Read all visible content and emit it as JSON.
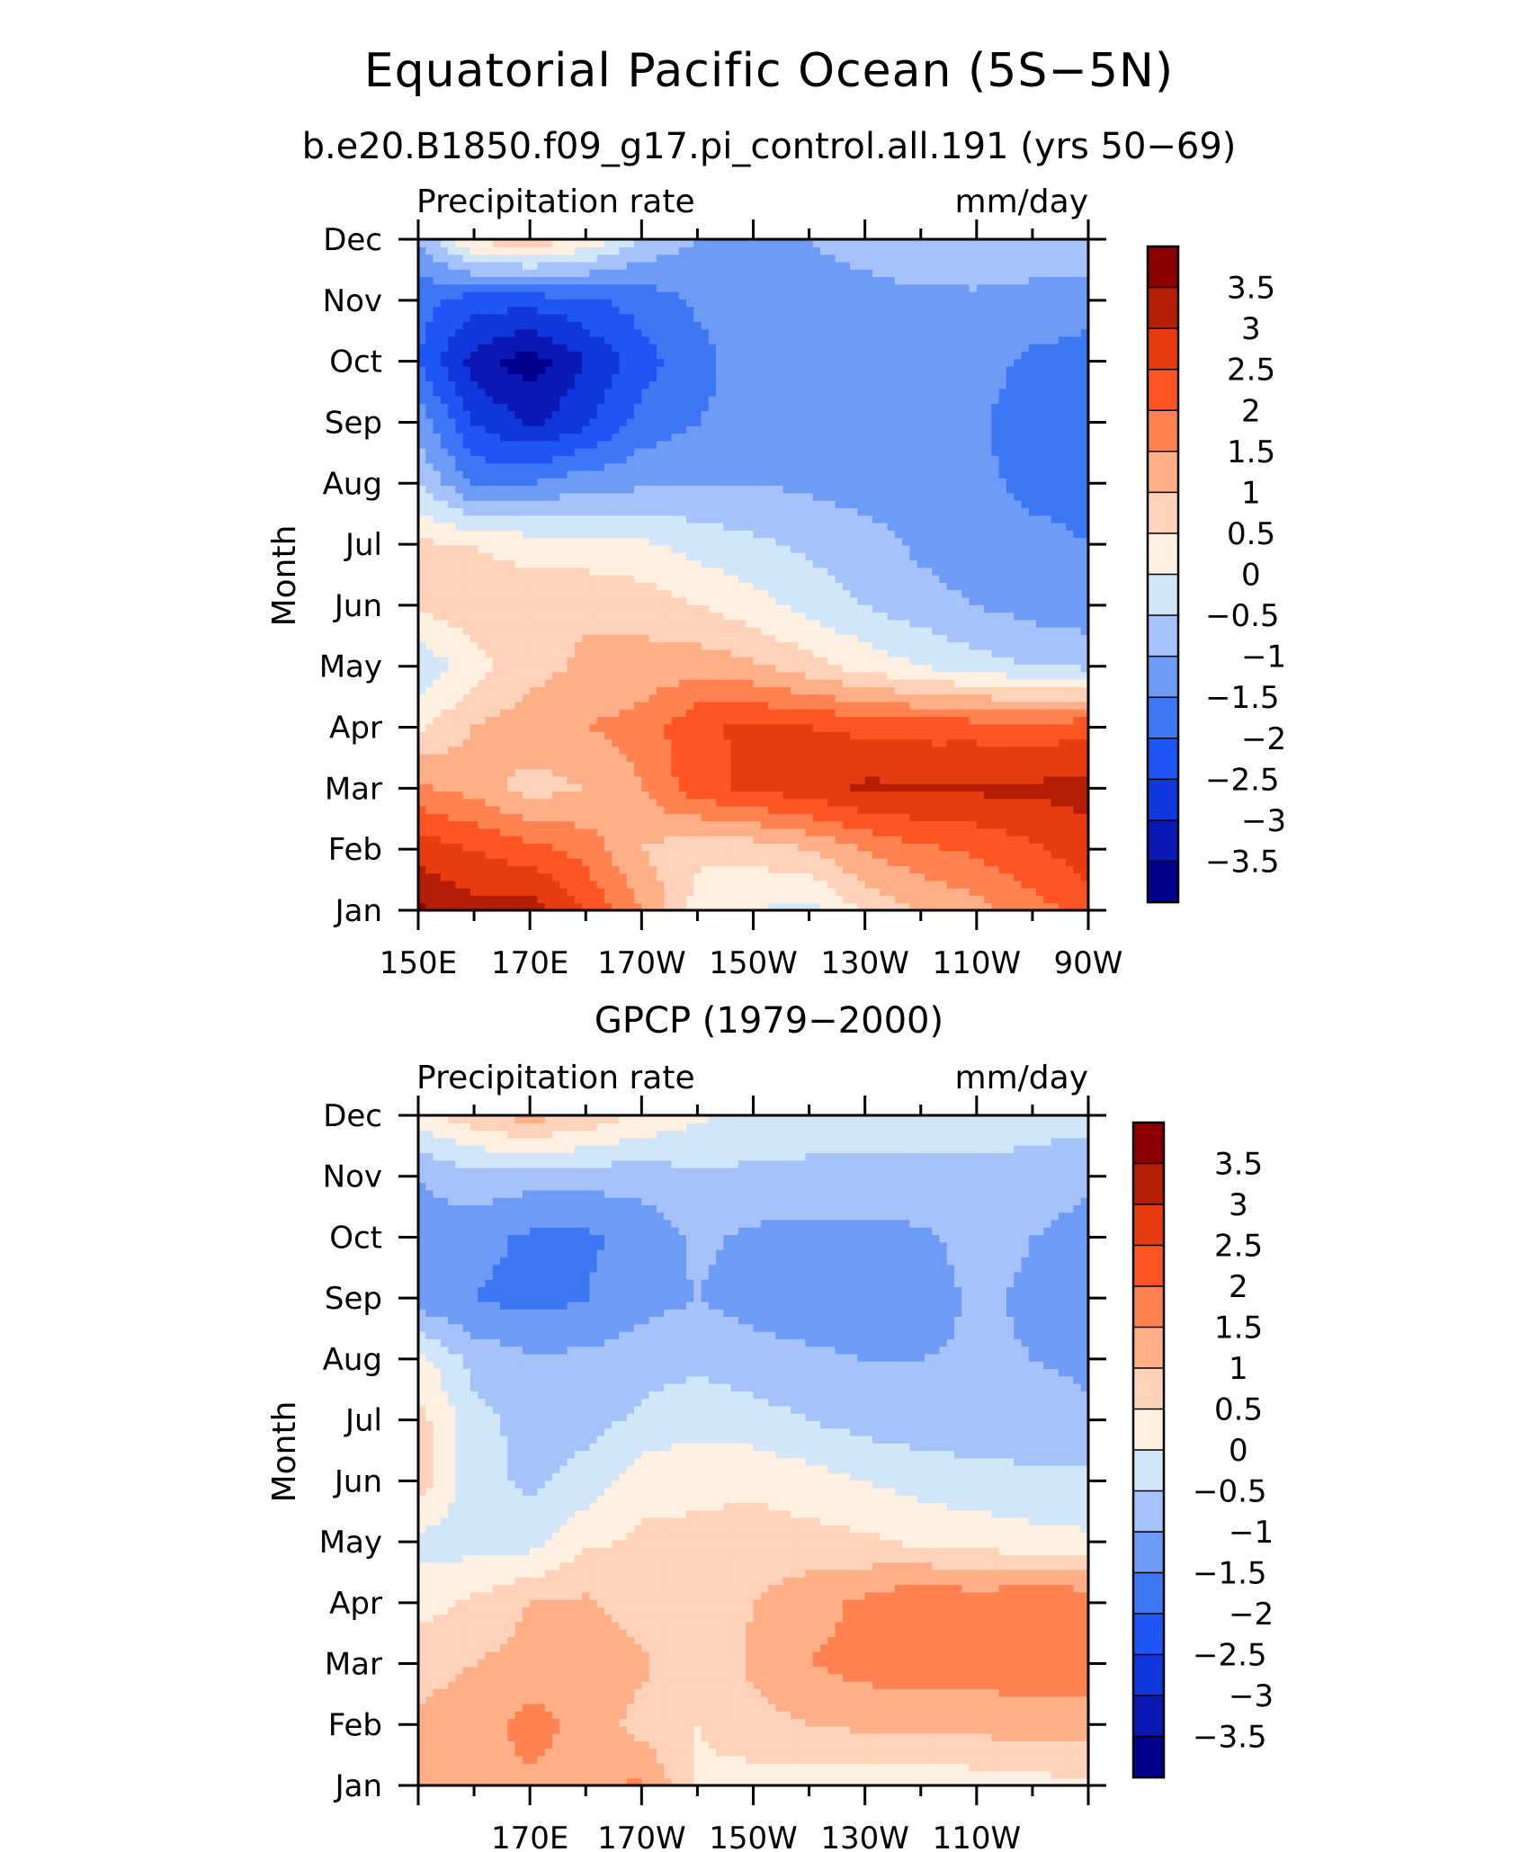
{
  "figure": {
    "title": "Equatorial Pacific Ocean (5S−5N)"
  },
  "chart_data": [
    {
      "type": "heatmap",
      "subtitle": "b.e20.B1850.f09_g17.pi_control.all.191 (yrs 50−69)",
      "left_label": "Precipitation rate",
      "right_label": "mm/day",
      "ylabel": "Month",
      "xlabel": "",
      "x_ticks": [
        "150E",
        "170E",
        "170W",
        "150W",
        "130W",
        "110W",
        "90W"
      ],
      "y_ticks": [
        "Jan",
        "Feb",
        "Mar",
        "Apr",
        "May",
        "Jun",
        "Jul",
        "Aug",
        "Sep",
        "Oct",
        "Nov",
        "Dec"
      ],
      "xlim": [
        150,
        270
      ],
      "colorbar_labels": [
        "3.5",
        "3",
        "2.5",
        "2",
        "1.5",
        "1",
        "0.5",
        "0",
        "−0.5",
        "−1",
        "−1.5",
        "−2",
        "−2.5",
        "−3",
        "−3.5"
      ],
      "levels": [
        -3.5,
        -3,
        -2.5,
        -2,
        -1.5,
        -1,
        -0.5,
        0,
        0.5,
        1,
        1.5,
        2,
        2.5,
        3,
        3.5
      ],
      "colors": [
        "#00008c",
        "#0a19b4",
        "#0f37dc",
        "#1e55f5",
        "#3c78f5",
        "#6e9bf5",
        "#a5c3fa",
        "#d2e6fa",
        "#fff0e1",
        "#ffd2b9",
        "#ffaf87",
        "#ff8250",
        "#ff5523",
        "#e63c0f",
        "#b41e05",
        "#8c0000"
      ],
      "grid": {
        "x_lon": [
          150,
          160,
          170,
          180,
          190,
          200,
          210,
          220,
          230,
          240,
          250,
          260,
          270
        ],
        "months": [
          "Jan",
          "Feb",
          "Mar",
          "Apr",
          "May",
          "Jun",
          "Jul",
          "Aug",
          "Sep",
          "Oct",
          "Nov",
          "Dec"
        ],
        "values": [
          [
            3.6,
            3.2,
            3.3,
            2.5,
            1.5,
            0.3,
            0.0,
            -0.2,
            0.6,
            1.0,
            1.3,
            1.8,
            2.2
          ],
          [
            2.8,
            2.5,
            2.2,
            1.8,
            1.0,
            0.6,
            0.7,
            1.0,
            1.5,
            1.9,
            2.1,
            2.4,
            2.8
          ],
          [
            1.6,
            1.3,
            0.8,
            1.0,
            1.5,
            2.3,
            2.6,
            2.8,
            3.1,
            3.1,
            3.1,
            3.1,
            3.2
          ],
          [
            0.4,
            1.0,
            1.3,
            1.5,
            1.7,
            2.4,
            2.6,
            2.5,
            2.4,
            2.3,
            2.3,
            2.2,
            2.4
          ],
          [
            -0.4,
            0.3,
            0.8,
            1.1,
            1.2,
            1.3,
            1.1,
            0.7,
            0.3,
            0.0,
            -0.3,
            -0.5,
            -0.6
          ],
          [
            0.6,
            0.8,
            0.8,
            0.9,
            0.8,
            0.5,
            0.2,
            -0.2,
            -0.5,
            -0.8,
            -1.0,
            -1.2,
            -1.3
          ],
          [
            0.6,
            0.5,
            0.3,
            0.2,
            0.1,
            -0.2,
            -0.4,
            -0.6,
            -0.8,
            -1.1,
            -1.3,
            -1.4,
            -1.5
          ],
          [
            -0.5,
            -1.6,
            -1.5,
            -1.2,
            -1.1,
            -1.0,
            -1.0,
            -1.1,
            -1.2,
            -1.3,
            -1.4,
            -1.6,
            -1.6
          ],
          [
            -1.2,
            -2.5,
            -3.1,
            -2.6,
            -1.8,
            -1.5,
            -1.3,
            -1.3,
            -1.3,
            -1.3,
            -1.4,
            -1.8,
            -1.8
          ],
          [
            -2.0,
            -3.2,
            -3.8,
            -3.0,
            -2.2,
            -1.7,
            -1.2,
            -1.2,
            -1.2,
            -1.2,
            -1.3,
            -1.6,
            -1.7
          ],
          [
            -1.8,
            -2.3,
            -2.3,
            -2.1,
            -1.8,
            -1.4,
            -1.2,
            -1.1,
            -1.1,
            -1.1,
            -1.1,
            -1.2,
            -1.3
          ],
          [
            -1.0,
            0.6,
            0.9,
            0.4,
            -0.6,
            -1.0,
            -1.0,
            -1.0,
            -0.9,
            -0.7,
            -0.6,
            -0.6,
            -0.6
          ]
        ]
      }
    },
    {
      "type": "heatmap",
      "subtitle": "GPCP (1979−2000)",
      "left_label": "Precipitation rate",
      "right_label": "mm/day",
      "ylabel": "Month",
      "xlabel": "",
      "x_ticks": [
        "170E",
        "170W",
        "150W",
        "130W",
        "110W"
      ],
      "y_ticks": [
        "Jan",
        "Feb",
        "Mar",
        "Apr",
        "May",
        "Jun",
        "Jul",
        "Aug",
        "Sep",
        "Oct",
        "Nov",
        "Dec"
      ],
      "xlim": [
        150,
        270
      ],
      "colorbar_labels": [
        "3.5",
        "3",
        "2.5",
        "2",
        "1.5",
        "1",
        "0.5",
        "0",
        "−0.5",
        "−1",
        "−1.5",
        "−2",
        "−2.5",
        "−3",
        "−3.5"
      ],
      "levels": [
        -3.5,
        -3,
        -2.5,
        -2,
        -1.5,
        -1,
        -0.5,
        0,
        0.5,
        1,
        1.5,
        2,
        2.5,
        3,
        3.5
      ],
      "colors": [
        "#00008c",
        "#0a19b4",
        "#0f37dc",
        "#1e55f5",
        "#3c78f5",
        "#6e9bf5",
        "#a5c3fa",
        "#d2e6fa",
        "#fff0e1",
        "#ffd2b9",
        "#ffaf87",
        "#ff8250",
        "#ff5523",
        "#e63c0f",
        "#b41e05",
        "#8c0000"
      ],
      "grid": {
        "x_lon": [
          150,
          160,
          170,
          180,
          190,
          200,
          210,
          220,
          230,
          240,
          250,
          260,
          270
        ],
        "months": [
          "Jan",
          "Feb",
          "Mar",
          "Apr",
          "May",
          "Jun",
          "Jul",
          "Aug",
          "Sep",
          "Oct",
          "Nov",
          "Dec"
        ],
        "values": [
          [
            1.0,
            1.2,
            1.4,
            1.4,
            1.6,
            0.4,
            0.3,
            0.2,
            0.2,
            0.2,
            0.2,
            0.3,
            0.4
          ],
          [
            1.1,
            1.3,
            1.7,
            1.3,
            0.8,
            0.5,
            0.8,
            1.0,
            1.1,
            1.1,
            1.2,
            1.2,
            1.3
          ],
          [
            0.8,
            1.0,
            1.2,
            1.5,
            1.1,
            0.6,
            1.1,
            1.5,
            1.7,
            1.8,
            1.7,
            1.9,
            1.7
          ],
          [
            0.3,
            0.6,
            1.0,
            1.1,
            0.7,
            0.6,
            1.0,
            1.3,
            1.6,
            2.0,
            1.8,
            2.0,
            1.9
          ],
          [
            -0.2,
            -0.2,
            -0.2,
            0.4,
            0.6,
            0.6,
            0.7,
            0.7,
            0.6,
            0.4,
            0.3,
            0.2,
            0.1
          ],
          [
            0.8,
            -0.3,
            -0.6,
            -0.3,
            0.3,
            0.4,
            0.4,
            0.2,
            0.0,
            -0.2,
            -0.3,
            -0.4,
            -0.4
          ],
          [
            0.7,
            -0.3,
            -0.7,
            -0.7,
            -0.4,
            -0.2,
            -0.3,
            -0.5,
            -0.7,
            -0.8,
            -0.8,
            -0.8,
            -0.9
          ],
          [
            0.2,
            -0.7,
            -0.9,
            -0.9,
            -0.7,
            -0.6,
            -0.8,
            -0.9,
            -1.0,
            -1.0,
            -0.9,
            -1.0,
            -1.1
          ],
          [
            -1.3,
            -1.5,
            -1.7,
            -1.5,
            -1.2,
            -1.0,
            -1.2,
            -1.3,
            -1.3,
            -1.3,
            -0.9,
            -1.1,
            -1.2
          ],
          [
            -1.2,
            -1.3,
            -1.6,
            -1.6,
            -1.3,
            -0.9,
            -1.1,
            -1.2,
            -1.2,
            -1.1,
            -0.8,
            -1.0,
            -1.2
          ],
          [
            -1.0,
            -0.7,
            -0.8,
            -0.8,
            -0.8,
            -0.6,
            -0.6,
            -0.6,
            -0.6,
            -0.6,
            -0.6,
            -0.7,
            -0.9
          ],
          [
            0.3,
            0.8,
            1.2,
            0.9,
            0.4,
            0.1,
            -0.2,
            -0.3,
            -0.3,
            -0.3,
            -0.3,
            -0.3,
            -0.3
          ]
        ]
      }
    }
  ]
}
